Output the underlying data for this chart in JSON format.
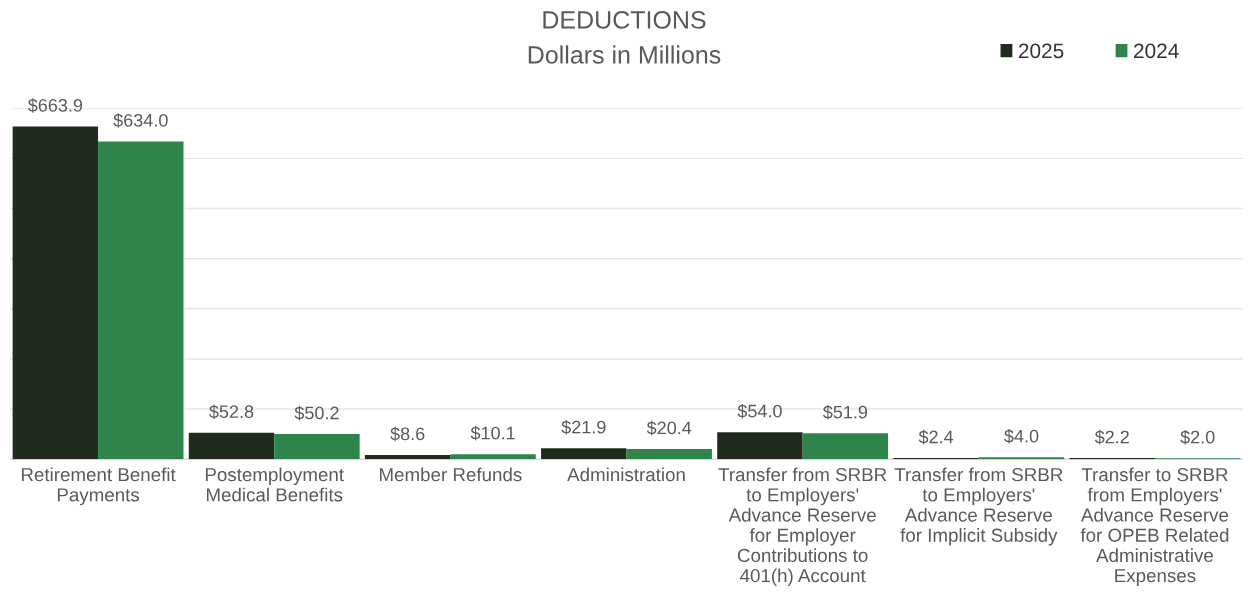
{
  "chart_data": {
    "type": "bar",
    "title": "DEDUCTIONS",
    "subtitle": "Dollars in Millions",
    "categories": [
      "Retirement Benefit\nPayments",
      "Postemployment\nMedical Benefits",
      "Member Refunds",
      "Administration",
      "Transfer from SRBR\nto Employers'\nAdvance Reserve\nfor Employer\nContributions to\n401(h) Account",
      "Transfer from SRBR\nto Employers'\nAdvance Reserve\nfor Implicit Subsidy",
      "Transfer to SRBR\nfrom Employers'\nAdvance Reserve\nfor OPEB Related\nAdministrative\nExpenses"
    ],
    "series": [
      {
        "name": "2025",
        "color": "#1f2b1c",
        "values": [
          663.9,
          52.8,
          8.6,
          21.9,
          54.0,
          2.4,
          2.2
        ],
        "value_labels": [
          "$663.9",
          "$52.8",
          "$8.6",
          "$21.9",
          "$54.0",
          "$2.4",
          "$2.2"
        ]
      },
      {
        "name": "2024",
        "color": "#2e844b",
        "values": [
          634.0,
          50.2,
          10.1,
          20.4,
          51.9,
          4.0,
          2.0
        ],
        "value_labels": [
          "$634.0",
          "$50.2",
          "$10.1",
          "$20.4",
          "$51.9",
          "$4.0",
          "$2.0"
        ]
      }
    ],
    "ylim": [
      0,
      700
    ],
    "yticks": [
      {
        "value": 0,
        "label": null
      },
      {
        "value": 100,
        "label": null
      },
      {
        "value": 200,
        "label": null
      },
      {
        "value": 300,
        "label": null
      },
      {
        "value": 400,
        "label": null
      },
      {
        "value": 500,
        "label": null
      },
      {
        "value": 600,
        "label": null
      },
      {
        "value": 700,
        "label": null
      }
    ],
    "grid": "y",
    "legend": "top right",
    "tick_labels": "x"
  }
}
